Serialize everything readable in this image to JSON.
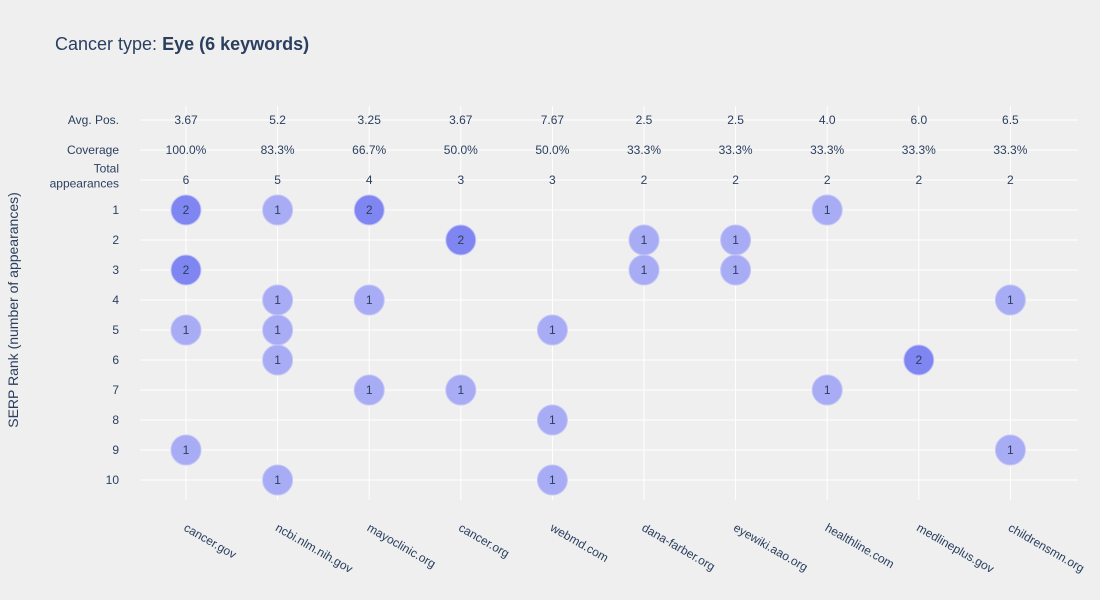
{
  "title": {
    "prefix": "Cancer type: ",
    "bold": "Eye (6 keywords)"
  },
  "chart_data": {
    "type": "scatter",
    "title": "Cancer type: Eye (6 keywords)",
    "ylabel": "SERP Rank (number of appearances)",
    "xlabel": "",
    "categories": [
      "cancer.gov",
      "ncbi.nlm.nih.gov",
      "mayoclinic.org",
      "cancer.org",
      "webmd.com",
      "dana-farber.org",
      "eyewiki.aao.org",
      "healthline.com",
      "medlineplus.gov",
      "childrensmn.org"
    ],
    "summary_rows": [
      {
        "label": "Avg. Pos.",
        "values": [
          "3.67",
          "5.2",
          "3.25",
          "3.67",
          "7.67",
          "2.5",
          "2.5",
          "4.0",
          "6.0",
          "6.5"
        ]
      },
      {
        "label": "Coverage",
        "values": [
          "100.0%",
          "83.3%",
          "66.7%",
          "50.0%",
          "50.0%",
          "33.3%",
          "33.3%",
          "33.3%",
          "33.3%",
          "33.3%"
        ]
      },
      {
        "label": "Total appearances",
        "label_lines": [
          "Total",
          "appearances"
        ],
        "values": [
          "6",
          "5",
          "4",
          "3",
          "3",
          "2",
          "2",
          "2",
          "2",
          "2"
        ]
      }
    ],
    "y_ticks": [
      "1",
      "2",
      "3",
      "4",
      "5",
      "6",
      "7",
      "8",
      "9",
      "10"
    ],
    "points": [
      {
        "domain": "cancer.gov",
        "rank": 1,
        "count": 2
      },
      {
        "domain": "cancer.gov",
        "rank": 3,
        "count": 2
      },
      {
        "domain": "cancer.gov",
        "rank": 5,
        "count": 1
      },
      {
        "domain": "cancer.gov",
        "rank": 9,
        "count": 1
      },
      {
        "domain": "ncbi.nlm.nih.gov",
        "rank": 1,
        "count": 1
      },
      {
        "domain": "ncbi.nlm.nih.gov",
        "rank": 4,
        "count": 1
      },
      {
        "domain": "ncbi.nlm.nih.gov",
        "rank": 5,
        "count": 1
      },
      {
        "domain": "ncbi.nlm.nih.gov",
        "rank": 6,
        "count": 1
      },
      {
        "domain": "ncbi.nlm.nih.gov",
        "rank": 10,
        "count": 1
      },
      {
        "domain": "mayoclinic.org",
        "rank": 1,
        "count": 2
      },
      {
        "domain": "mayoclinic.org",
        "rank": 4,
        "count": 1
      },
      {
        "domain": "mayoclinic.org",
        "rank": 7,
        "count": 1
      },
      {
        "domain": "cancer.org",
        "rank": 2,
        "count": 2
      },
      {
        "domain": "cancer.org",
        "rank": 7,
        "count": 1
      },
      {
        "domain": "webmd.com",
        "rank": 5,
        "count": 1
      },
      {
        "domain": "webmd.com",
        "rank": 8,
        "count": 1
      },
      {
        "domain": "webmd.com",
        "rank": 10,
        "count": 1
      },
      {
        "domain": "dana-farber.org",
        "rank": 2,
        "count": 1
      },
      {
        "domain": "dana-farber.org",
        "rank": 3,
        "count": 1
      },
      {
        "domain": "eyewiki.aao.org",
        "rank": 2,
        "count": 1
      },
      {
        "domain": "eyewiki.aao.org",
        "rank": 3,
        "count": 1
      },
      {
        "domain": "healthline.com",
        "rank": 1,
        "count": 1
      },
      {
        "domain": "healthline.com",
        "rank": 7,
        "count": 1
      },
      {
        "domain": "medlineplus.gov",
        "rank": 6,
        "count": 2
      },
      {
        "domain": "childrensmn.org",
        "rank": 4,
        "count": 1
      },
      {
        "domain": "childrensmn.org",
        "rank": 9,
        "count": 1
      }
    ],
    "grid": true,
    "colors": {
      "background": "#efefef",
      "grid": "#ffffff",
      "text": "#2a3f5f",
      "bubble_1": "#a8acf5",
      "bubble_2": "#7f86f2",
      "bubble_outline": "#c4c6f7"
    }
  }
}
